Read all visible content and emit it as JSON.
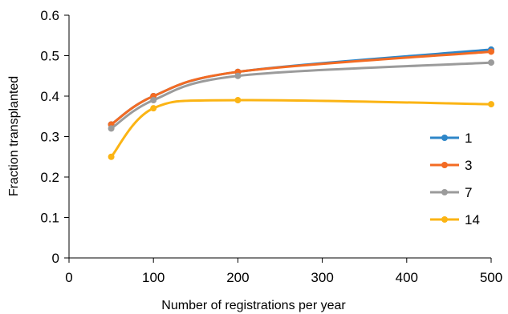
{
  "chart_data": {
    "type": "line",
    "title": "",
    "xlabel": "Number of registrations per year",
    "ylabel": "Fraction transplanted",
    "xlim": [
      0,
      500
    ],
    "ylim": [
      0,
      0.6
    ],
    "xticks": [
      0,
      100,
      200,
      300,
      400,
      500
    ],
    "yticks": [
      0,
      0.1,
      0.2,
      0.3,
      0.4,
      0.5,
      0.6
    ],
    "xtick_labels": [
      "0",
      "100",
      "200",
      "300",
      "400",
      "500"
    ],
    "ytick_labels": [
      "0",
      "0.1",
      "0.2",
      "0.3",
      "0.4",
      "0.5",
      "0.6"
    ],
    "grid": false,
    "legend_position": "right",
    "x": [
      50,
      100,
      200,
      500
    ],
    "series": [
      {
        "name": "1",
        "color": "#2e86c8",
        "values": [
          0.33,
          0.4,
          0.46,
          0.515
        ]
      },
      {
        "name": "3",
        "color": "#f36b23",
        "values": [
          0.33,
          0.4,
          0.46,
          0.51
        ]
      },
      {
        "name": "7",
        "color": "#9b9b9b",
        "values": [
          0.32,
          0.39,
          0.45,
          0.483
        ]
      },
      {
        "name": "14",
        "color": "#fbb414",
        "values": [
          0.25,
          0.37,
          0.39,
          0.38
        ]
      }
    ]
  }
}
